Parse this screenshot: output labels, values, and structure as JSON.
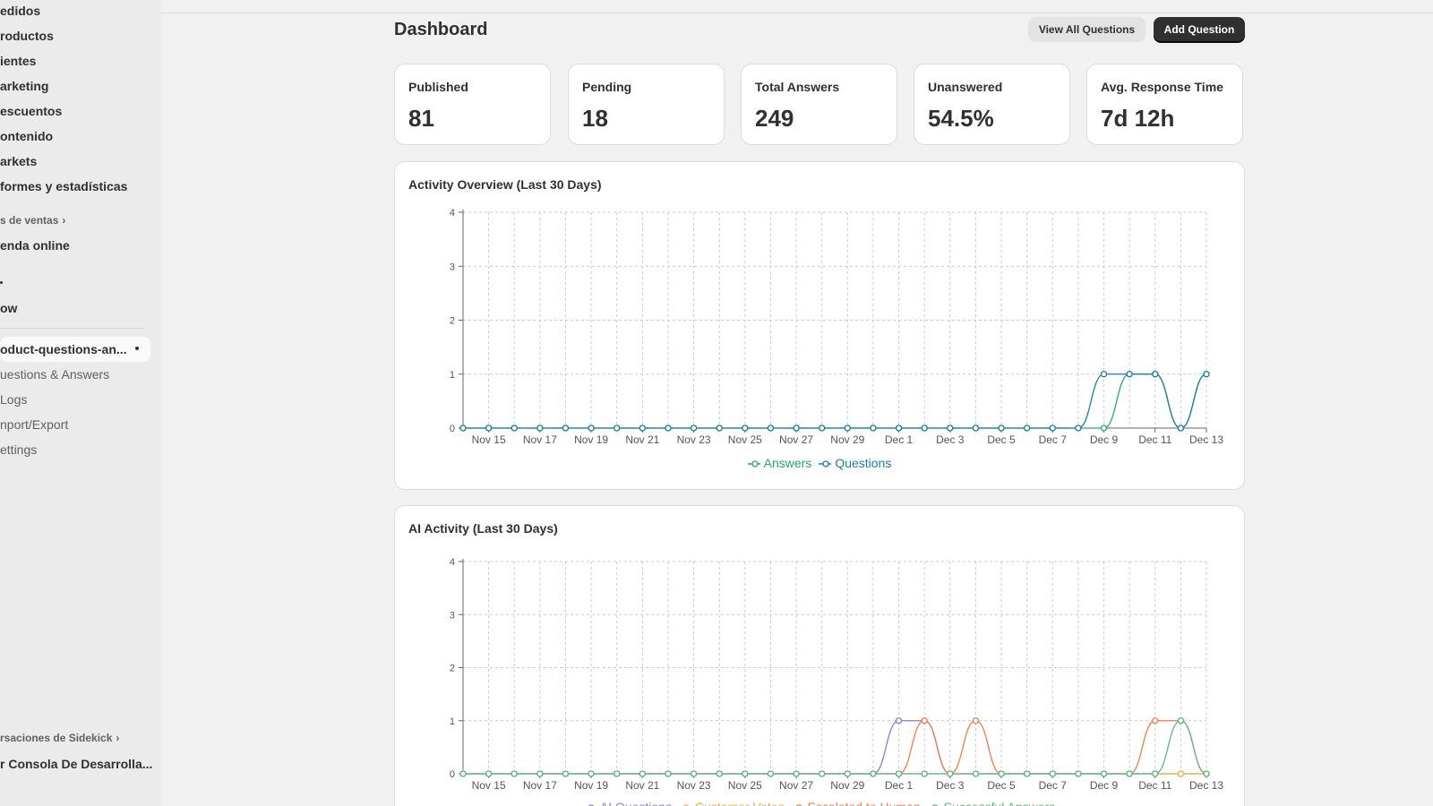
{
  "sidebar": {
    "items": [
      {
        "label": "edidos"
      },
      {
        "label": "roductos"
      },
      {
        "label": "ientes"
      },
      {
        "label": "arketing"
      },
      {
        "label": "escuentos"
      },
      {
        "label": "ontenido"
      },
      {
        "label": "arkets"
      },
      {
        "label": "formes y estadísticas"
      }
    ],
    "sales_channels_label": "s de ventas",
    "online_store": "enda online",
    "app_unknown": "ow",
    "active_app": "oduct-questions-an...",
    "app_subitems": [
      {
        "label": "uestions & Answers"
      },
      {
        "label": " Logs"
      },
      {
        "label": "nport/Export"
      },
      {
        "label": "ettings"
      }
    ],
    "sidekick_label": "rsaciones de Sidekick",
    "dev_console": "r Consola De Desarrolla..."
  },
  "header": {
    "title": "Dashboard",
    "view_all": "View All Questions",
    "add_question": "Add Question"
  },
  "stats": [
    {
      "label": "Published",
      "value": "81"
    },
    {
      "label": "Pending",
      "value": "18"
    },
    {
      "label": "Total Answers",
      "value": "249"
    },
    {
      "label": "Unanswered",
      "value": "54.5%"
    },
    {
      "label": "Avg. Response Time",
      "value": "7d 12h"
    }
  ],
  "colors": {
    "answers": "#21a67a",
    "questions": "#1d7ba8",
    "ai_questions": "#8a7cd3",
    "customer_votes": "#e0b83e",
    "escalated": "#ee7d48",
    "successful": "#58b88a",
    "grid": "#cccccc",
    "axis": "#666666"
  },
  "chart_data": [
    {
      "type": "line",
      "title": "Activity Overview (Last 30 Days)",
      "x_tick_labels": [
        "Nov 15",
        "Nov 17",
        "Nov 19",
        "Nov 21",
        "Nov 23",
        "Nov 25",
        "Nov 27",
        "Nov 29",
        "Dec 1",
        "Dec 3",
        "Dec 5",
        "Dec 7",
        "Dec 9",
        "Dec 11",
        "Dec 13"
      ],
      "x": [
        "Nov 14",
        "Nov 15",
        "Nov 16",
        "Nov 17",
        "Nov 18",
        "Nov 19",
        "Nov 20",
        "Nov 21",
        "Nov 22",
        "Nov 23",
        "Nov 24",
        "Nov 25",
        "Nov 26",
        "Nov 27",
        "Nov 28",
        "Nov 29",
        "Nov 30",
        "Dec 1",
        "Dec 2",
        "Dec 3",
        "Dec 4",
        "Dec 5",
        "Dec 6",
        "Dec 7",
        "Dec 8",
        "Dec 9",
        "Dec 10",
        "Dec 11",
        "Dec 12",
        "Dec 13"
      ],
      "ylim": [
        0,
        4
      ],
      "y_ticks": [
        0,
        1,
        2,
        3,
        4
      ],
      "grid": true,
      "legend_position": "bottom",
      "series": [
        {
          "name": "Answers",
          "color_key": "answers",
          "values": [
            0,
            0,
            0,
            0,
            0,
            0,
            0,
            0,
            0,
            0,
            0,
            0,
            0,
            0,
            0,
            0,
            0,
            0,
            0,
            0,
            0,
            0,
            0,
            0,
            0,
            0,
            1,
            1,
            0,
            1
          ]
        },
        {
          "name": "Questions",
          "color_key": "questions",
          "values": [
            0,
            0,
            0,
            0,
            0,
            0,
            0,
            0,
            0,
            0,
            0,
            0,
            0,
            0,
            0,
            0,
            0,
            0,
            0,
            0,
            0,
            0,
            0,
            0,
            0,
            1,
            1,
            1,
            0,
            1
          ]
        }
      ]
    },
    {
      "type": "line",
      "title": "AI Activity (Last 30 Days)",
      "x_tick_labels": [
        "Nov 15",
        "Nov 17",
        "Nov 19",
        "Nov 21",
        "Nov 23",
        "Nov 25",
        "Nov 27",
        "Nov 29",
        "Dec 1",
        "Dec 3",
        "Dec 5",
        "Dec 7",
        "Dec 9",
        "Dec 11",
        "Dec 13"
      ],
      "x": [
        "Nov 14",
        "Nov 15",
        "Nov 16",
        "Nov 17",
        "Nov 18",
        "Nov 19",
        "Nov 20",
        "Nov 21",
        "Nov 22",
        "Nov 23",
        "Nov 24",
        "Nov 25",
        "Nov 26",
        "Nov 27",
        "Nov 28",
        "Nov 29",
        "Nov 30",
        "Dec 1",
        "Dec 2",
        "Dec 3",
        "Dec 4",
        "Dec 5",
        "Dec 6",
        "Dec 7",
        "Dec 8",
        "Dec 9",
        "Dec 10",
        "Dec 11",
        "Dec 12",
        "Dec 13"
      ],
      "ylim": [
        0,
        4
      ],
      "y_ticks": [
        0,
        1,
        2,
        3,
        4
      ],
      "grid": true,
      "legend_position": "bottom",
      "series": [
        {
          "name": "AI Questions",
          "color_key": "ai_questions",
          "values": [
            0,
            0,
            0,
            0,
            0,
            0,
            0,
            0,
            0,
            0,
            0,
            0,
            0,
            0,
            0,
            0,
            0,
            1,
            1,
            0,
            0,
            0,
            0,
            0,
            0,
            0,
            0,
            0,
            0,
            0
          ]
        },
        {
          "name": "Customer Votes",
          "color_key": "customer_votes",
          "values": [
            0,
            0,
            0,
            0,
            0,
            0,
            0,
            0,
            0,
            0,
            0,
            0,
            0,
            0,
            0,
            0,
            0,
            0,
            0,
            0,
            0,
            0,
            0,
            0,
            0,
            0,
            0,
            0,
            0,
            0
          ]
        },
        {
          "name": "Escalated to Human",
          "color_key": "escalated",
          "values": [
            0,
            0,
            0,
            0,
            0,
            0,
            0,
            0,
            0,
            0,
            0,
            0,
            0,
            0,
            0,
            0,
            0,
            0,
            1,
            0,
            1,
            0,
            0,
            0,
            0,
            0,
            0,
            1,
            1,
            0
          ]
        },
        {
          "name": "Successful Answers",
          "color_key": "successful",
          "values": [
            0,
            0,
            0,
            0,
            0,
            0,
            0,
            0,
            0,
            0,
            0,
            0,
            0,
            0,
            0,
            0,
            0,
            0,
            0,
            0,
            0,
            0,
            0,
            0,
            0,
            0,
            0,
            0,
            1,
            0
          ]
        }
      ]
    }
  ]
}
